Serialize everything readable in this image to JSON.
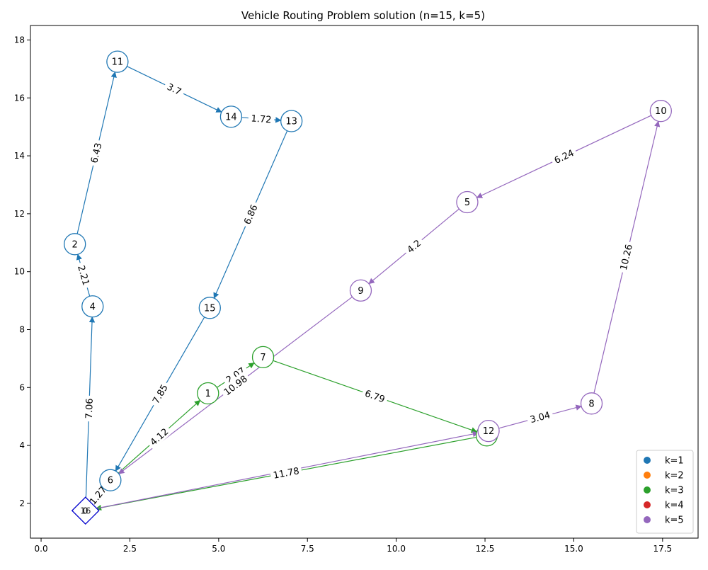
{
  "chart_data": {
    "type": "network",
    "title": "Vehicle Routing Problem solution (n=15, k=5)",
    "xlim": [
      -0.3,
      18.5
    ],
    "ylim": [
      0.8,
      18.5
    ],
    "x_ticks": [
      0.0,
      2.5,
      5.0,
      7.5,
      10.0,
      12.5,
      15.0,
      17.5
    ],
    "x_tick_labels": [
      "0.0",
      "2.5",
      "5.0",
      "7.5",
      "10.0",
      "12.5",
      "15.0",
      "17.5"
    ],
    "y_ticks": [
      2,
      4,
      6,
      8,
      10,
      12,
      14,
      16,
      18
    ],
    "y_tick_labels": [
      "2",
      "4",
      "6",
      "8",
      "10",
      "12",
      "14",
      "16",
      "18"
    ],
    "depot": {
      "label": "0",
      "x": 1.25,
      "y": 1.75
    },
    "nodes": [
      {
        "id": "1",
        "x": 4.7,
        "y": 5.8,
        "route": "k=3"
      },
      {
        "id": "2",
        "x": 0.95,
        "y": 10.95,
        "route": "k=1"
      },
      {
        "id": "3",
        "x": 12.55,
        "y": 4.35,
        "route": "k=3"
      },
      {
        "id": "4",
        "x": 1.45,
        "y": 8.8,
        "route": "k=1"
      },
      {
        "id": "5",
        "x": 12.0,
        "y": 12.4,
        "route": "k=5"
      },
      {
        "id": "6",
        "x": 1.95,
        "y": 2.8,
        "route": "k=1"
      },
      {
        "id": "7",
        "x": 6.25,
        "y": 7.05,
        "route": "k=3"
      },
      {
        "id": "8",
        "x": 15.5,
        "y": 5.45,
        "route": "k=5"
      },
      {
        "id": "9",
        "x": 9.0,
        "y": 9.35,
        "route": "k=5"
      },
      {
        "id": "10",
        "x": 17.45,
        "y": 15.55,
        "route": "k=5"
      },
      {
        "id": "11",
        "x": 2.15,
        "y": 17.25,
        "route": "k=1"
      },
      {
        "id": "12",
        "x": 12.6,
        "y": 4.5,
        "route": "k=5"
      },
      {
        "id": "13",
        "x": 7.05,
        "y": 15.2,
        "route": "k=1"
      },
      {
        "id": "14",
        "x": 5.35,
        "y": 15.35,
        "route": "k=1"
      },
      {
        "id": "15",
        "x": 4.75,
        "y": 8.75,
        "route": "k=1"
      }
    ],
    "depot_overlay_labels": [
      "0",
      "16"
    ],
    "edges": [
      {
        "from": "0",
        "to": "4",
        "route": "k=1",
        "label": "7.06"
      },
      {
        "from": "4",
        "to": "2",
        "route": "k=1",
        "label": "2.21"
      },
      {
        "from": "2",
        "to": "11",
        "route": "k=1",
        "label": "6.43"
      },
      {
        "from": "11",
        "to": "14",
        "route": "k=1",
        "label": "3.7"
      },
      {
        "from": "14",
        "to": "13",
        "route": "k=1",
        "label": "1.72"
      },
      {
        "from": "13",
        "to": "15",
        "route": "k=1",
        "label": "6.86"
      },
      {
        "from": "15",
        "to": "6",
        "route": "k=1",
        "label": "7.85"
      },
      {
        "from": "6",
        "to": "0",
        "route": "k=1",
        "label": "1.27"
      },
      {
        "from": "6",
        "to": "1",
        "route": "k=3",
        "label": "4.12"
      },
      {
        "from": "1",
        "to": "7",
        "route": "k=3",
        "label": "2.07"
      },
      {
        "from": "7",
        "to": "3",
        "route": "k=3",
        "label": "6.79"
      },
      {
        "from": "3",
        "to": "0",
        "route": "k=3",
        "label": "11.78"
      },
      {
        "from": "0",
        "to": "12",
        "route": "k=5",
        "label": ""
      },
      {
        "from": "12",
        "to": "8",
        "route": "k=5",
        "label": "3.04"
      },
      {
        "from": "8",
        "to": "10",
        "route": "k=5",
        "label": "10.26"
      },
      {
        "from": "10",
        "to": "5",
        "route": "k=5",
        "label": "6.24"
      },
      {
        "from": "5",
        "to": "9",
        "route": "k=5",
        "label": "4.2"
      },
      {
        "from": "9",
        "to": "6",
        "route": "k=5",
        "label": "10.98"
      }
    ],
    "legend": {
      "placement": "bottom-right",
      "entries": [
        {
          "label": "k=1",
          "color": "#1f77b4"
        },
        {
          "label": "k=2",
          "color": "#ff7f0e"
        },
        {
          "label": "k=3",
          "color": "#2ca02c"
        },
        {
          "label": "k=4",
          "color": "#d62728"
        },
        {
          "label": "k=5",
          "color": "#9467bd"
        }
      ]
    },
    "depot_color": "#0000cc"
  }
}
